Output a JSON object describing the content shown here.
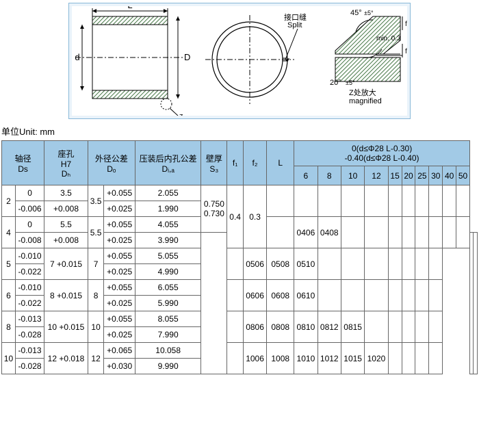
{
  "unit_label": "单位Unit: mm",
  "diagram": {
    "labels": {
      "L": "L",
      "d": "d",
      "D": "D",
      "z": "z",
      "split": "接口缝\nSplit",
      "ang45": "45°±5°",
      "ang20": "20°±5°",
      "f1": "f₁",
      "f2": "f₂",
      "min": "min. 0.3",
      "mag": "Z处放大\nmagnified"
    },
    "colors": {
      "panel_border": "#88b8d8",
      "panel_bg": "#eaf3fa",
      "hatch": "#4a7a4a",
      "line": "#000"
    }
  },
  "headers": {
    "ds": "轴径\nDs",
    "dh": "座孔\nH7\nDₕ",
    "do": "外径公差\nDₒ",
    "dia": "压装后内孔公差\nDᵢ,ₐ",
    "s3": "壁厚\nS₃",
    "f1": "f₁",
    "f2": "f₂",
    "L": "L",
    "L_note": "0(d≤Φ28 L-0.30)\n-0.40(d≤Φ28 L-0.40)",
    "Lcols": [
      "6",
      "8",
      "10",
      "12",
      "15",
      "20",
      "25",
      "30",
      "40",
      "50"
    ]
  },
  "rows": [
    {
      "ds": "2",
      "dstol": [
        "0",
        "-0.006"
      ],
      "dh": [
        "3.5",
        "+0.008"
      ],
      "do": "3.5",
      "dotol": [
        "+0.055",
        "+0.025"
      ],
      "dia": [
        "2.055",
        "1.990"
      ],
      "s3": [
        "0.750",
        "0.730"
      ],
      "f1": "0.4",
      "f2": "0.3",
      "parts": [
        "",
        "",
        "",
        "",
        "",
        "",
        "",
        "",
        "",
        ""
      ]
    },
    {
      "ds": "4",
      "dstol": [
        "0",
        "-0.008"
      ],
      "dh": [
        "5.5",
        "+0.008"
      ],
      "do": "5.5",
      "dotol": [
        "+0.055",
        "+0.025"
      ],
      "dia": [
        "4.055",
        "3.990"
      ],
      "s3": null,
      "f1": null,
      "f2": null,
      "parts": [
        "0406",
        "0408",
        "",
        "",
        "",
        "",
        "",
        "",
        "",
        ""
      ]
    },
    {
      "ds": "5",
      "dstol": [
        "-0.010",
        "-0.022"
      ],
      "dh": [
        "7 +0.015"
      ],
      "do": "7",
      "dotol": [
        "+0.055",
        "+0.025"
      ],
      "dia": [
        "5.055",
        "4.990"
      ],
      "s3": null,
      "f1": null,
      "f2": null,
      "parts": [
        "0506",
        "0508",
        "0510",
        "",
        "",
        "",
        "",
        "",
        "",
        ""
      ]
    },
    {
      "ds": "6",
      "dstol": [
        "-0.010",
        "-0.022"
      ],
      "dh": [
        "8 +0.015"
      ],
      "do": "8",
      "dotol": [
        "+0.055",
        "+0.025"
      ],
      "dia": [
        "6.055",
        "5.990"
      ],
      "s3": null,
      "f1": null,
      "f2": null,
      "parts": [
        "0606",
        "0608",
        "0610",
        "",
        "",
        "",
        "",
        "",
        "",
        ""
      ]
    },
    {
      "ds": "8",
      "dstol": [
        "-0.013",
        "-0.028"
      ],
      "dh": [
        "10 +0.015"
      ],
      "do": "10",
      "dotol": [
        "+0.055",
        "+0.025"
      ],
      "dia": [
        "8.055",
        "7.990"
      ],
      "s3": null,
      "f1": null,
      "f2": null,
      "parts": [
        "0806",
        "0808",
        "0810",
        "0812",
        "0815",
        "",
        "",
        "",
        "",
        ""
      ]
    },
    {
      "ds": "10",
      "dstol": [
        "-0.013",
        "-0.028"
      ],
      "dh": [
        "12 +0.018"
      ],
      "do": "12",
      "dotol": [
        "+0.065",
        "+0.030"
      ],
      "dia": [
        "10.058",
        "9.990"
      ],
      "s3": null,
      "f1": null,
      "f2": null,
      "parts": [
        "1006",
        "1008",
        "1010",
        "1012",
        "1015",
        "1020",
        "",
        "",
        "",
        ""
      ]
    }
  ]
}
